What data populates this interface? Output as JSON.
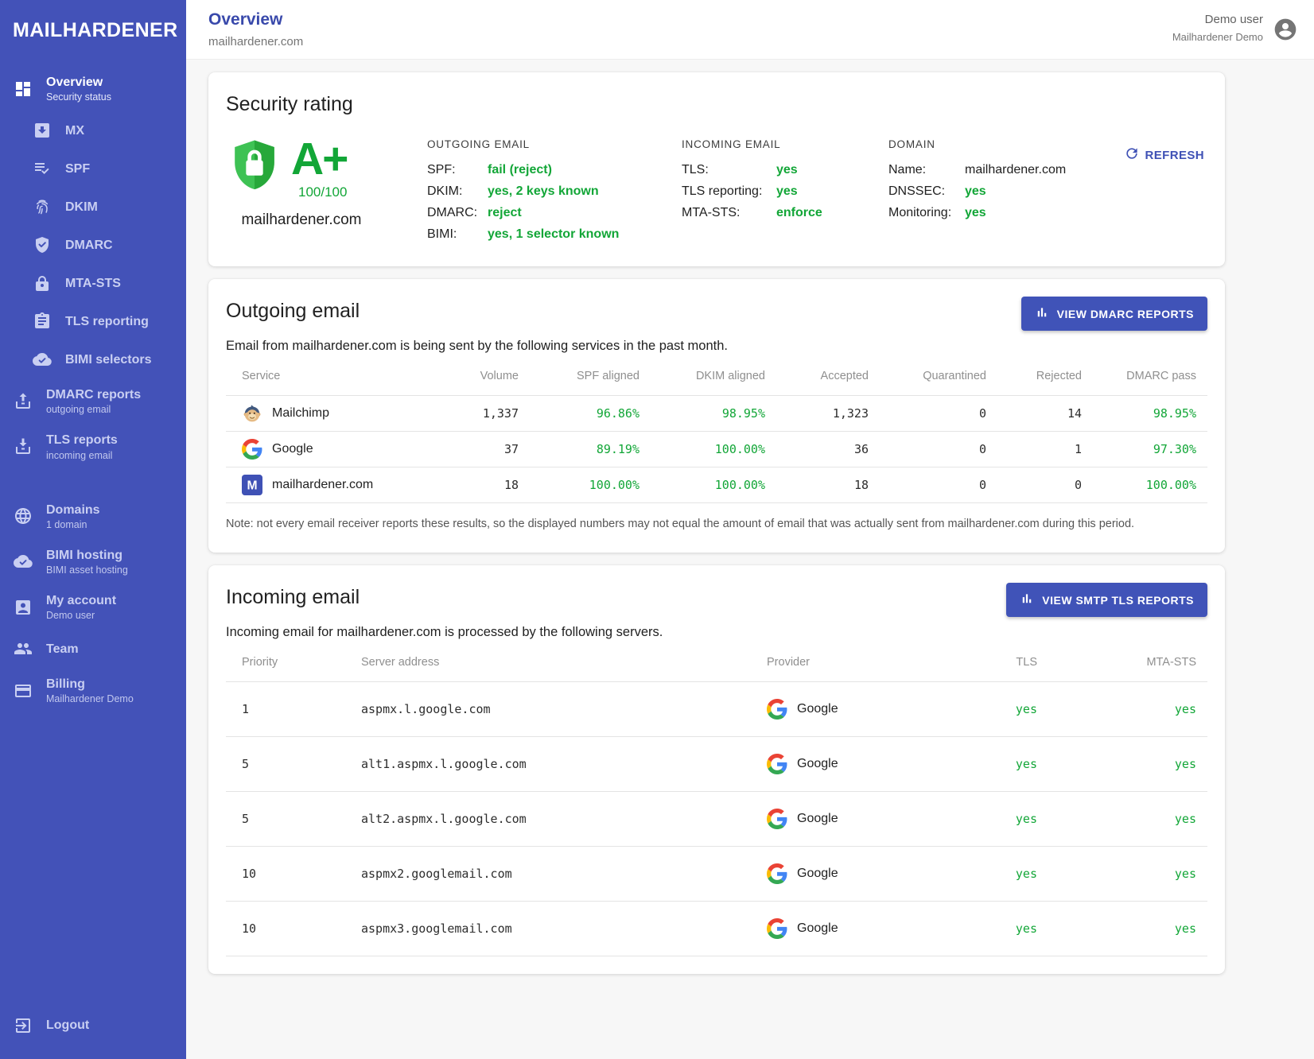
{
  "colors": {
    "sidebar_bg": "#4352b8",
    "accent": "#3f51b5",
    "title_blue": "#3949ab",
    "green": "#12a637",
    "shield_light": "#3ec254",
    "shield_dark": "#27a83a"
  },
  "app": {
    "name": "MAILHARDENER"
  },
  "header": {
    "title": "Overview",
    "subtitle": "mailhardener.com",
    "user_name": "Demo user",
    "user_org": "Mailhardener Demo",
    "avatar_icon": "account-circle-icon"
  },
  "sidebar": {
    "items": [
      {
        "label": "Overview",
        "sublabel": "Security status",
        "icon": "dashboard-icon",
        "active": true
      },
      {
        "label": "MX",
        "icon": "inbox-download-icon",
        "indent": true
      },
      {
        "label": "SPF",
        "icon": "list-check-icon",
        "indent": true
      },
      {
        "label": "DKIM",
        "icon": "fingerprint-icon",
        "indent": true
      },
      {
        "label": "DMARC",
        "icon": "shield-check-icon",
        "indent": true
      },
      {
        "label": "MTA-STS",
        "icon": "lock-icon",
        "indent": true
      },
      {
        "label": "TLS reporting",
        "icon": "clipboard-icon",
        "indent": true
      },
      {
        "label": "BIMI selectors",
        "icon": "cloud-check-icon",
        "indent": true
      },
      {
        "label": "DMARC reports",
        "sublabel": "outgoing email",
        "icon": "upload-tray-icon"
      },
      {
        "label": "TLS reports",
        "sublabel": "incoming email",
        "icon": "download-tray-icon"
      },
      {
        "label": "Domains",
        "sublabel": "1 domain",
        "icon": "globe-icon",
        "gap": true
      },
      {
        "label": "BIMI hosting",
        "sublabel": "BIMI asset hosting",
        "icon": "cloud-check-icon"
      },
      {
        "label": "My account",
        "sublabel": "Demo user",
        "icon": "person-icon"
      },
      {
        "label": "Team",
        "icon": "people-icon"
      },
      {
        "label": "Billing",
        "sublabel": "Mailhardener Demo",
        "icon": "card-icon"
      }
    ],
    "logout": {
      "label": "Logout",
      "icon": "logout-icon"
    }
  },
  "security": {
    "title": "Security rating",
    "shield_icon": "shield-lock-icon",
    "grade": "A+",
    "score": "100/100",
    "domain": "mailhardener.com",
    "refresh_label": "REFRESH",
    "refresh_icon": "refresh-icon",
    "columns": [
      {
        "heading": "OUTGOING EMAIL",
        "rows": [
          {
            "label": "SPF:",
            "value": "fail (reject)"
          },
          {
            "label": "DKIM:",
            "value": "yes, 2 keys known"
          },
          {
            "label": "DMARC:",
            "value": "reject"
          },
          {
            "label": "BIMI:",
            "value": "yes, 1 selector known"
          }
        ]
      },
      {
        "heading": "INCOMING EMAIL",
        "rows": [
          {
            "label": "TLS:",
            "value": "yes"
          },
          {
            "label": "TLS reporting:",
            "value": "yes"
          },
          {
            "label": "MTA-STS:",
            "value": "enforce"
          }
        ]
      },
      {
        "heading": "DOMAIN",
        "rows": [
          {
            "label": "Name:",
            "value": "mailhardener.com",
            "plain": true
          },
          {
            "label": "DNSSEC:",
            "value": "yes"
          },
          {
            "label": "Monitoring:",
            "value": "yes"
          }
        ]
      }
    ]
  },
  "outgoing": {
    "title": "Outgoing email",
    "button_label": "VIEW DMARC REPORTS",
    "button_icon": "bar-chart-icon",
    "description": "Email from mailhardener.com is being sent by the following services in the past month.",
    "note": "Note: not every email receiver reports these results, so the displayed numbers may not equal the amount of email that was actually sent from mailhardener.com during this period.",
    "table": {
      "headers": [
        "Service",
        "Volume",
        "SPF aligned",
        "DKIM aligned",
        "Accepted",
        "Quarantined",
        "Rejected",
        "DMARC pass"
      ],
      "rows": [
        {
          "service": "Mailchimp",
          "icon": "mailchimp-icon",
          "volume": "1,337",
          "spf_aligned": "96.86%",
          "dkim_aligned": "98.95%",
          "accepted": "1,323",
          "quarantined": "0",
          "rejected": "14",
          "dmarc_pass": "98.95%"
        },
        {
          "service": "Google",
          "icon": "google-icon",
          "volume": "37",
          "spf_aligned": "89.19%",
          "dkim_aligned": "100.00%",
          "accepted": "36",
          "quarantined": "0",
          "rejected": "1",
          "dmarc_pass": "97.30%"
        },
        {
          "service": "mailhardener.com",
          "icon": "mailhardener-icon",
          "volume": "18",
          "spf_aligned": "100.00%",
          "dkim_aligned": "100.00%",
          "accepted": "18",
          "quarantined": "0",
          "rejected": "0",
          "dmarc_pass": "100.00%"
        }
      ]
    }
  },
  "incoming": {
    "title": "Incoming email",
    "button_label": "VIEW SMTP TLS REPORTS",
    "button_icon": "bar-chart-icon",
    "description": "Incoming email for mailhardener.com is processed by the following servers.",
    "table": {
      "headers": [
        "Priority",
        "Server address",
        "Provider",
        "TLS",
        "MTA-STS"
      ],
      "rows": [
        {
          "priority": "1",
          "server": "aspmx.l.google.com",
          "provider": "Google",
          "provider_icon": "google-icon",
          "tls": "yes",
          "mta_sts": "yes"
        },
        {
          "priority": "5",
          "server": "alt1.aspmx.l.google.com",
          "provider": "Google",
          "provider_icon": "google-icon",
          "tls": "yes",
          "mta_sts": "yes"
        },
        {
          "priority": "5",
          "server": "alt2.aspmx.l.google.com",
          "provider": "Google",
          "provider_icon": "google-icon",
          "tls": "yes",
          "mta_sts": "yes"
        },
        {
          "priority": "10",
          "server": "aspmx2.googlemail.com",
          "provider": "Google",
          "provider_icon": "google-icon",
          "tls": "yes",
          "mta_sts": "yes"
        },
        {
          "priority": "10",
          "server": "aspmx3.googlemail.com",
          "provider": "Google",
          "provider_icon": "google-icon",
          "tls": "yes",
          "mta_sts": "yes"
        }
      ]
    }
  }
}
